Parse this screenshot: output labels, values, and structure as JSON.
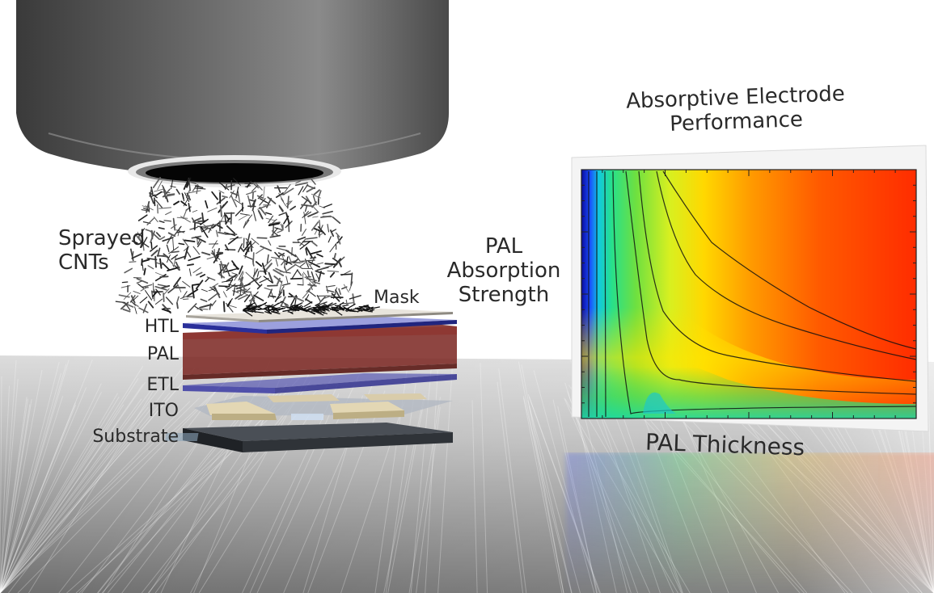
{
  "labels": {
    "sprayed": "Sprayed",
    "cnts": "CNTs",
    "mask": "Mask",
    "htl": "HTL",
    "pal": "PAL",
    "etl": "ETL",
    "ito": "ITO",
    "substrate": "Substrate",
    "plot_title_line1": "Absorptive Electrode",
    "plot_title_line2": "Performance",
    "y_label_line1": "PAL",
    "y_label_line2": "Absorption",
    "y_label_line3": "Strength",
    "x_label": "PAL Thickness"
  },
  "colors": {
    "htl": "#3a3fb0",
    "pal": "#7a2420",
    "etl": "#3535a8",
    "ito": "#cdbf98",
    "substrate": "#2f3338",
    "heat_high": "#ff2a00",
    "heat_low": "#0a0a9a"
  }
}
